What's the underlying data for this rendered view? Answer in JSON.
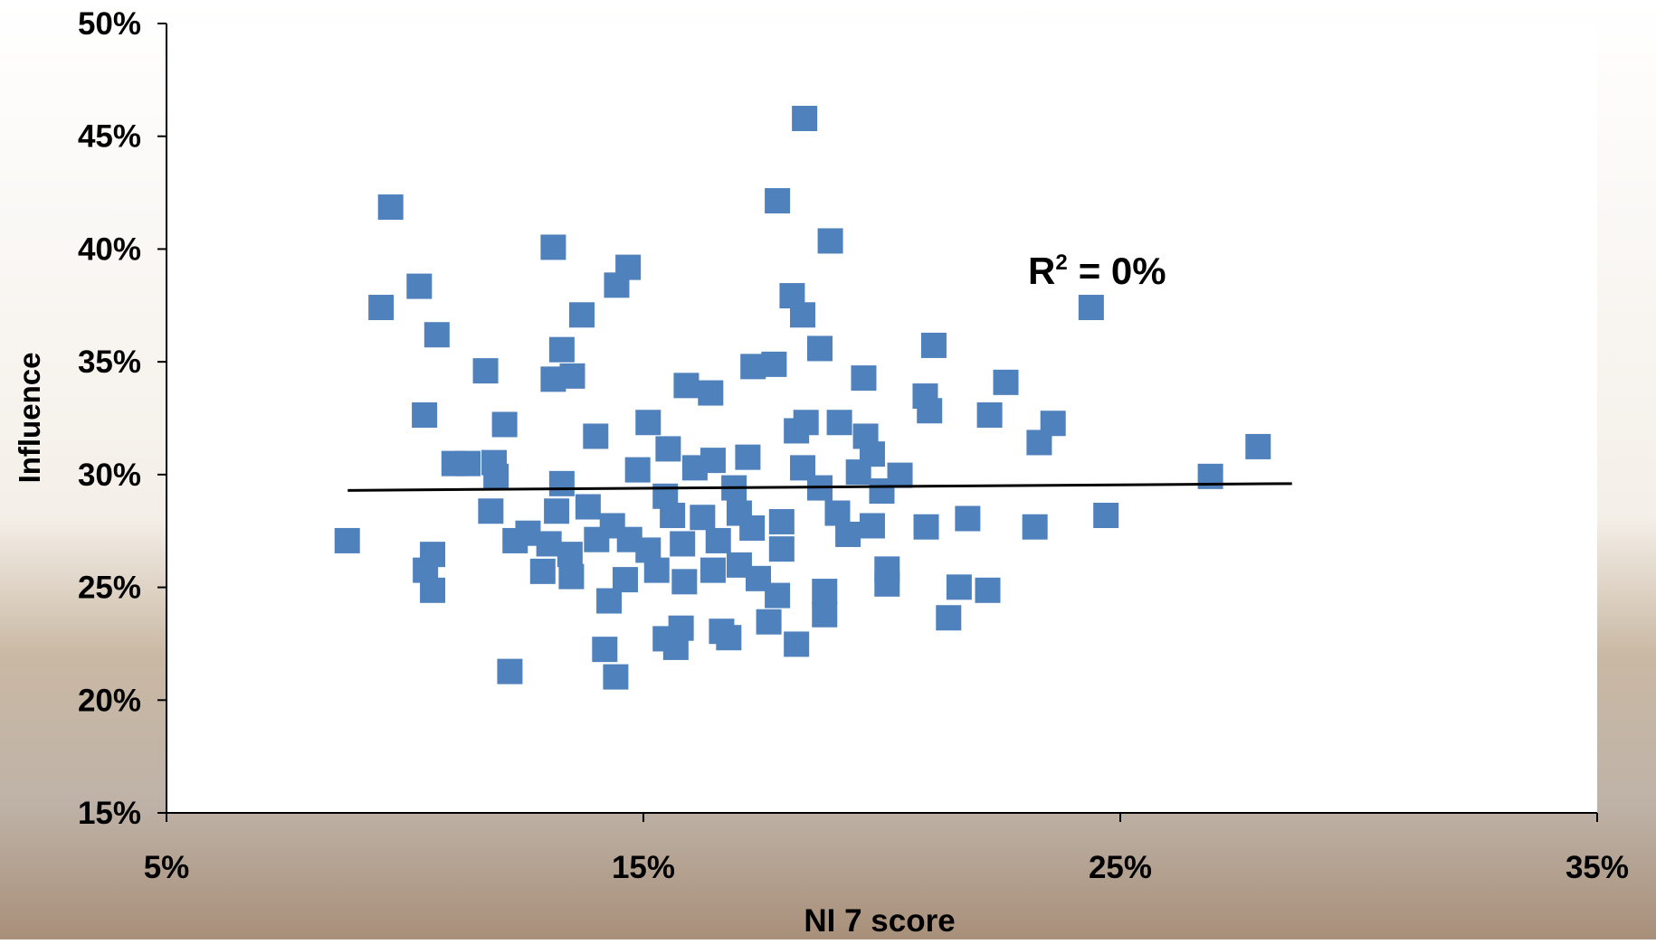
{
  "chart_data": {
    "type": "scatter",
    "x_label": "NI 7 score",
    "y_label": "Influence",
    "annotation": {
      "base": "R",
      "superscript": "2",
      "text": "= 0%"
    },
    "color": "#4f81bd",
    "x": [
      8.79,
      9.7,
      9.5,
      10.3,
      10.67,
      10.41,
      10.43,
      10.58,
      10.58,
      11.03,
      11.32,
      11.69,
      11.87,
      11.91,
      11.8,
      12.09,
      12.2,
      12.31,
      12.58,
      12.89,
      13.11,
      13.29,
      13.11,
      13.51,
      13.29,
      13.18,
      13.02,
      13.46,
      13.49,
      13.71,
      13.84,
      14.0,
      14.02,
      14.35,
      14.44,
      14.68,
      14.19,
      14.42,
      14.28,
      14.62,
      14.71,
      14.88,
      15.1,
      15.1,
      15.28,
      15.46,
      15.52,
      15.61,
      15.46,
      15.79,
      15.68,
      15.86,
      15.9,
      15.82,
      16.08,
      16.24,
      16.41,
      16.46,
      16.46,
      16.57,
      16.64,
      16.79,
      16.9,
      17.01,
      17.01,
      17.19,
      17.3,
      17.28,
      17.41,
      17.63,
      17.74,
      17.81,
      17.9,
      17.9,
      17.81,
      18.12,
      18.21,
      18.34,
      18.38,
      18.41,
      18.21,
      18.34,
      18.7,
      18.8,
      18.8,
      18.92,
      18.7,
      19.07,
      19.11,
      19.29,
      19.62,
      19.51,
      19.66,
      19.8,
      19.8,
      20.0,
      20.11,
      20.11,
      20.38,
      20.91,
      21.0,
      20.93,
      21.09,
      21.4,
      21.62,
      21.8,
      22.22,
      22.26,
      22.6,
      23.21,
      23.3,
      23.59,
      24.39,
      24.7,
      26.89,
      27.89
    ],
    "values": [
      27.07,
      41.86,
      37.41,
      38.35,
      36.2,
      32.64,
      25.76,
      26.46,
      24.87,
      30.49,
      30.49,
      34.6,
      30.53,
      29.92,
      28.38,
      32.22,
      21.27,
      27.07,
      27.4,
      25.71,
      40.08,
      35.54,
      34.23,
      34.37,
      29.6,
      28.38,
      26.93,
      26.46,
      25.48,
      37.08,
      28.57,
      31.7,
      27.12,
      27.73,
      38.4,
      39.19,
      22.25,
      21.03,
      24.4,
      25.34,
      27.12,
      30.21,
      32.31,
      26.65,
      25.76,
      29.04,
      31.14,
      28.19,
      22.72,
      23.19,
      22.34,
      25.25,
      33.95,
      26.93,
      30.3,
      28.1,
      33.62,
      30.63,
      25.76,
      27.07,
      23.05,
      22.77,
      29.41,
      28.29,
      25.99,
      30.77,
      34.79,
      27.63,
      25.39,
      23.47,
      34.89,
      24.64,
      26.7,
      27.91,
      42.14,
      37.93,
      31.94,
      37.08,
      45.79,
      32.31,
      22.48,
      30.3,
      35.59,
      24.82,
      23.79,
      40.36,
      29.41,
      28.29,
      32.31,
      27.35,
      34.28,
      30.11,
      31.7,
      30.91,
      27.73,
      29.27,
      25.81,
      25.15,
      29.97,
      33.48,
      32.83,
      27.68,
      35.73,
      23.65,
      25.01,
      28.05,
      24.87,
      32.64,
      34.09,
      27.68,
      31.42,
      32.27,
      37.41,
      28.19,
      29.92,
      31.24
    ],
    "trendline": {
      "x": [
        8.8,
        28.6
      ],
      "values": [
        29.3,
        29.6
      ]
    },
    "xlim": [
      5,
      35
    ],
    "xticks": [
      {
        "value": 5,
        "label": "5%"
      },
      {
        "value": 15,
        "label": "15%"
      },
      {
        "value": 25,
        "label": "25%"
      },
      {
        "value": 35,
        "label": "35%"
      }
    ],
    "ylim": [
      15,
      50
    ],
    "yticks": [
      {
        "value": 15,
        "label": "15%"
      },
      {
        "value": 20,
        "label": "20%"
      },
      {
        "value": 25,
        "label": "25%"
      },
      {
        "value": 30,
        "label": "30%"
      },
      {
        "value": 35,
        "label": "35%"
      },
      {
        "value": 40,
        "label": "40%"
      },
      {
        "value": 45,
        "label": "45%"
      },
      {
        "value": 50,
        "label": "50%"
      }
    ]
  }
}
